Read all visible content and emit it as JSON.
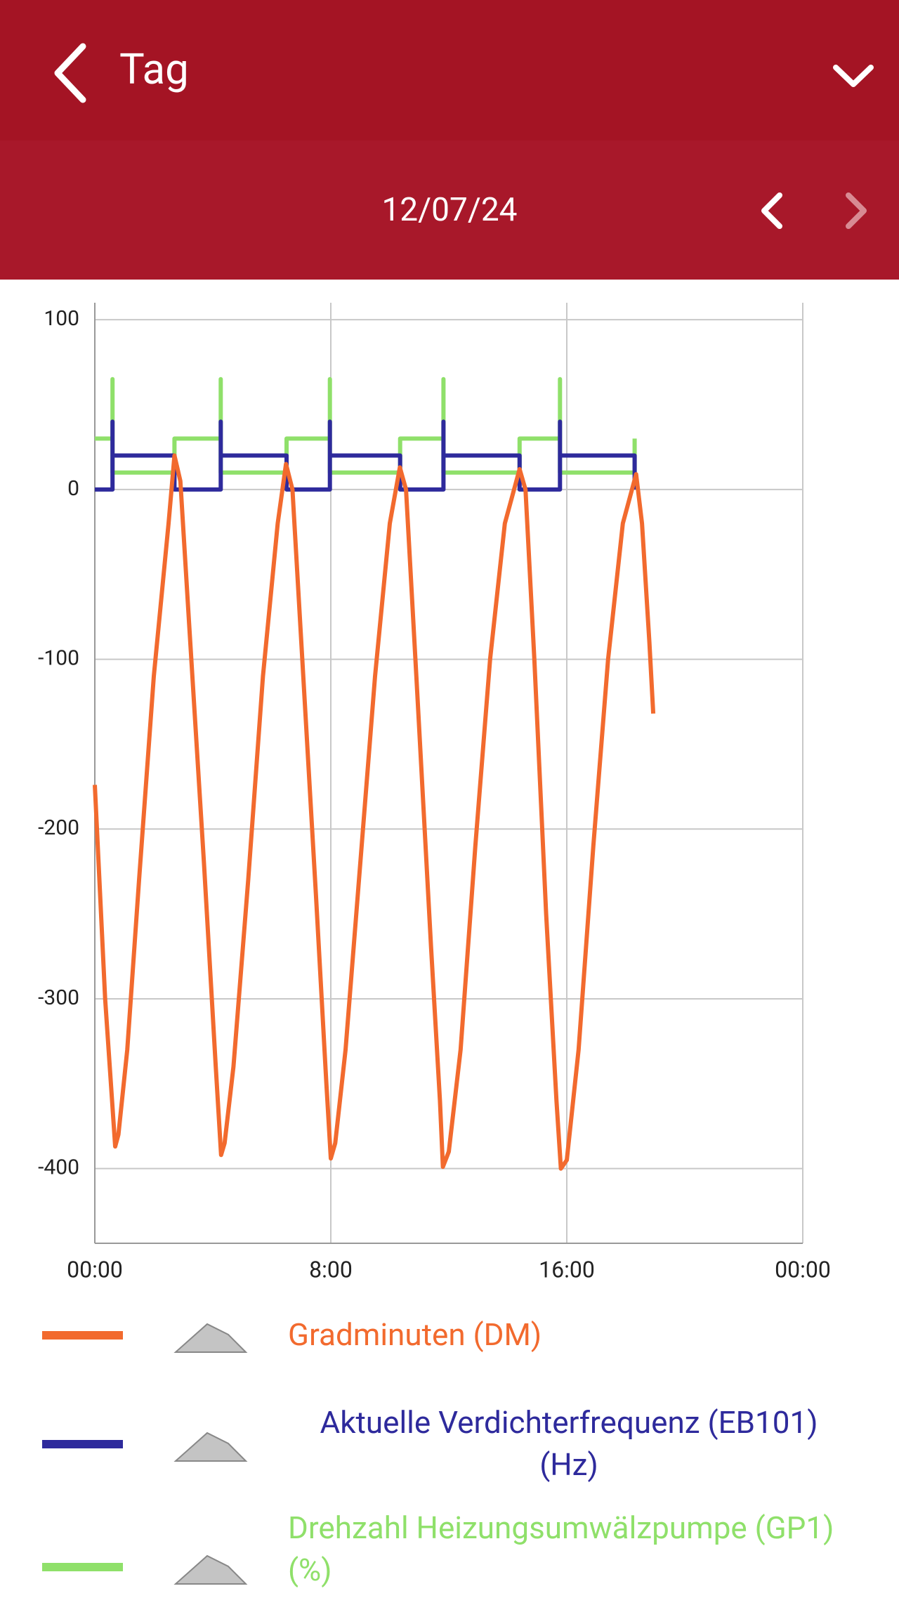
{
  "header": {
    "title": "Tag",
    "date": "12/07/24"
  },
  "chart_data": {
    "type": "line",
    "xlim": [
      0,
      24
    ],
    "xticks": [
      {
        "value": 0,
        "label": "00:00"
      },
      {
        "value": 8,
        "label": "8:00"
      },
      {
        "value": 16,
        "label": "16:00"
      },
      {
        "value": 24,
        "label": "00:00"
      }
    ],
    "ylim": [
      -444,
      110
    ],
    "yticks": [
      -400,
      -300,
      -200,
      -100,
      0,
      100
    ],
    "grid": true,
    "series": [
      {
        "name": "Gradminuten (DM)",
        "color": "#f26a2e",
        "x": [
          0,
          0.35,
          0.69,
          0.8,
          1.1,
          1.5,
          2.0,
          2.5,
          2.7,
          2.9,
          3.2,
          3.7,
          4.1,
          4.28,
          4.4,
          4.7,
          5.2,
          5.7,
          6.2,
          6.48,
          6.7,
          7.0,
          7.5,
          7.85,
          8.0,
          8.15,
          8.5,
          9.0,
          9.5,
          10.0,
          10.34,
          10.55,
          10.9,
          11.4,
          11.7,
          11.8,
          12.0,
          12.4,
          12.9,
          13.4,
          13.9,
          14.4,
          14.6,
          14.9,
          15.3,
          15.65,
          15.8,
          16.0,
          16.4,
          16.9,
          17.4,
          17.9,
          18.35,
          18.55,
          18.8,
          18.93
        ],
        "values": [
          -174,
          -300,
          -387,
          -380,
          -330,
          -230,
          -110,
          -20,
          20,
          5,
          -80,
          -220,
          -340,
          -392,
          -385,
          -340,
          -230,
          -110,
          -20,
          15,
          0,
          -90,
          -240,
          -350,
          -394,
          -385,
          -330,
          -220,
          -110,
          -20,
          13,
          0,
          -110,
          -270,
          -360,
          -399,
          -390,
          -330,
          -210,
          -100,
          -20,
          12,
          0,
          -100,
          -250,
          -360,
          -400,
          -395,
          -330,
          -210,
          -100,
          -20,
          9,
          -20,
          -90,
          -132
        ]
      },
      {
        "name": "Aktuelle Verdichterfrequenz (EB101) (Hz)",
        "color": "#2e2a9c",
        "x": [
          0,
          0.6,
          0.6,
          0.6,
          2.7,
          2.7,
          4.27,
          4.27,
          4.27,
          6.5,
          6.5,
          7.97,
          7.97,
          7.97,
          10.35,
          10.35,
          11.82,
          11.82,
          11.82,
          14.4,
          14.4,
          15.77,
          15.77,
          15.77,
          18.3,
          18.3
        ],
        "values": [
          0,
          0,
          40,
          20,
          20,
          0,
          0,
          40,
          20,
          20,
          0,
          0,
          40,
          20,
          20,
          0,
          0,
          40,
          20,
          20,
          0,
          0,
          40,
          20,
          20,
          0
        ]
      },
      {
        "name": "Drehzahl Heizungsumwälzpumpe (GP1) (%)",
        "color": "#8fe06a",
        "x": [
          0,
          0.6,
          0.6,
          0.6,
          2.7,
          2.7,
          4.27,
          4.27,
          4.27,
          6.5,
          6.5,
          7.97,
          7.97,
          7.97,
          10.35,
          10.35,
          11.82,
          11.82,
          11.82,
          14.4,
          14.4,
          15.77,
          15.77,
          15.77,
          18.3,
          18.3
        ],
        "values": [
          30,
          30,
          65,
          10,
          10,
          30,
          30,
          65,
          10,
          10,
          30,
          30,
          65,
          10,
          10,
          30,
          30,
          65,
          10,
          10,
          30,
          30,
          65,
          10,
          10,
          30
        ]
      }
    ]
  }
}
